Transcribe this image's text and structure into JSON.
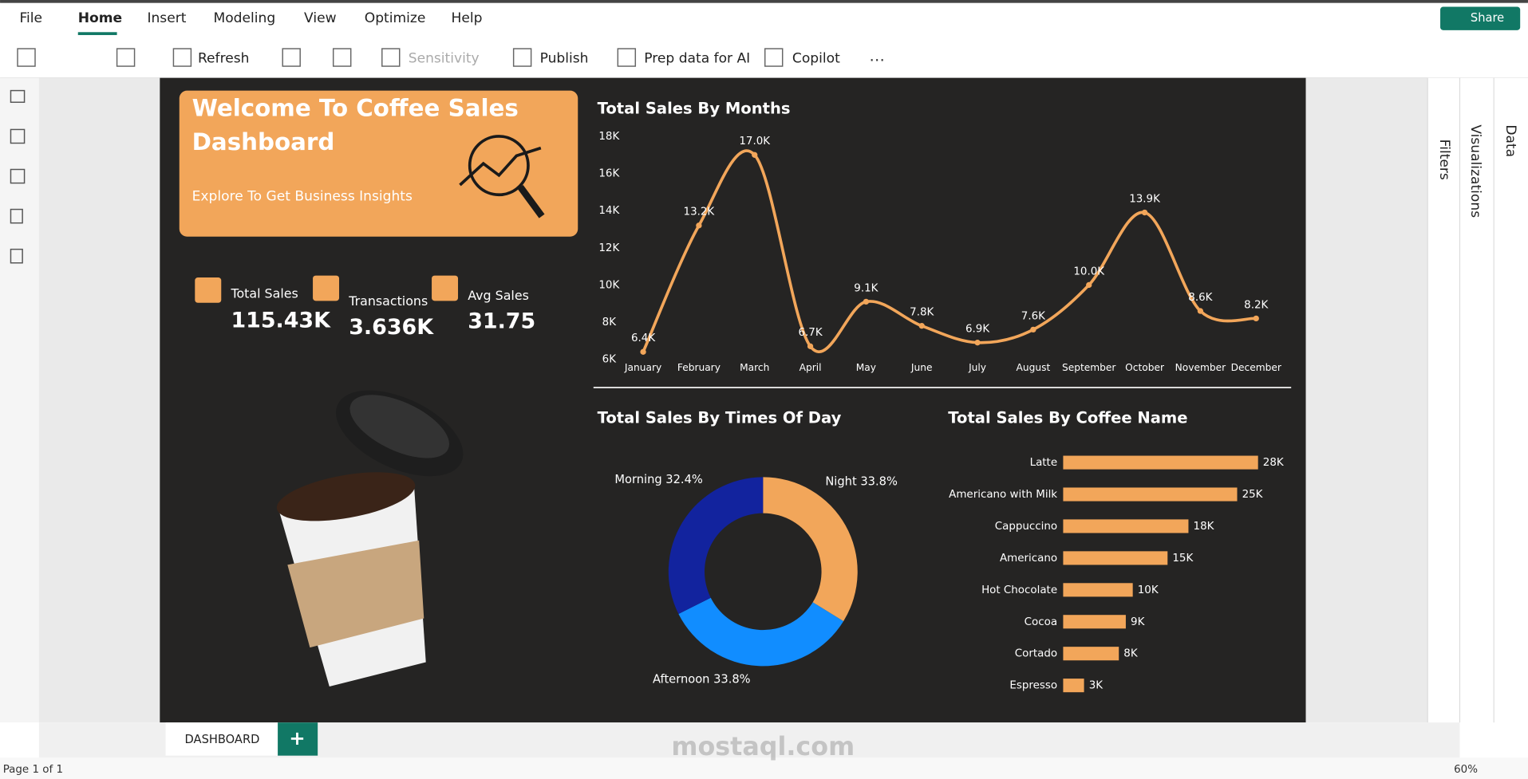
{
  "menu": {
    "items": [
      "File",
      "Home",
      "Insert",
      "Modeling",
      "View",
      "Optimize",
      "Help"
    ],
    "share": "Share"
  },
  "toolbar": {
    "items": [
      "Refresh",
      "Sensitivity",
      "Publish",
      "Prep data for AI",
      "Copilot"
    ]
  },
  "panes": [
    "Filters",
    "Visualizations",
    "Data"
  ],
  "dashboard": {
    "banner": {
      "title_lines": [
        "Welcome To Coffee Sales",
        "Dashboard"
      ],
      "subtitle": "Explore To Get Business Insights"
    },
    "kpis": [
      {
        "label": "Total Sales",
        "value": "115.43K"
      },
      {
        "label": "Transactions",
        "value": "3.636K"
      },
      {
        "label": "Avg Sales",
        "value": "31.75"
      }
    ],
    "line_chart": {
      "type": "line",
      "title": "Total Sales By Months",
      "categories": [
        "January",
        "February",
        "March",
        "April",
        "May",
        "June",
        "July",
        "August",
        "September",
        "October",
        "November",
        "December"
      ],
      "values": [
        6400,
        13200,
        17000,
        6700,
        9100,
        7800,
        6900,
        7600,
        10000,
        13900,
        8600,
        8200
      ],
      "value_labels": [
        "6.4K",
        "13.2K",
        "17.0K",
        "6.7K",
        "9.1K",
        "7.8K",
        "6.9K",
        "7.6K",
        "10.0K",
        "13.9K",
        "8.6K",
        "8.2K"
      ],
      "color": "#f2a65a",
      "ylim": [
        6000,
        18000
      ],
      "yticks": [
        {
          "value": 6000,
          "label": "6K"
        },
        {
          "value": 8000,
          "label": "8K"
        },
        {
          "value": 10000,
          "label": "10K"
        },
        {
          "value": 12000,
          "label": "12K"
        },
        {
          "value": 14000,
          "label": "14K"
        },
        {
          "value": 16000,
          "label": "16K"
        },
        {
          "value": 18000,
          "label": "18K"
        }
      ]
    },
    "donut_chart": {
      "type": "donut",
      "title": "Total Sales By Times Of Day",
      "categories": [
        "Night",
        "Afternoon",
        "Morning"
      ],
      "values": [
        33.8,
        33.8,
        32.4
      ],
      "value_labels": [
        "33.8%",
        "33.8%",
        "32.4%"
      ],
      "colors": [
        "#f2a65a",
        "#118dff",
        "#12239e"
      ]
    },
    "bar_chart": {
      "type": "hbar",
      "title": "Total Sales By Coffee Name",
      "categories": [
        "Latte",
        "Americano with Milk",
        "Cappuccino",
        "Americano",
        "Hot Chocolate",
        "Cocoa",
        "Cortado",
        "Espresso"
      ],
      "values": [
        28000,
        25000,
        18000,
        15000,
        10000,
        9000,
        8000,
        3000
      ],
      "value_labels": [
        "28K",
        "25K",
        "18K",
        "15K",
        "10K",
        "9K",
        "8K",
        "3K"
      ],
      "color": "#f2a65a"
    }
  },
  "tabs": [
    "DASHBOARD"
  ],
  "status": {
    "page": "Page 1 of 1",
    "zoom": "60%"
  },
  "watermark": "mostaql.com"
}
